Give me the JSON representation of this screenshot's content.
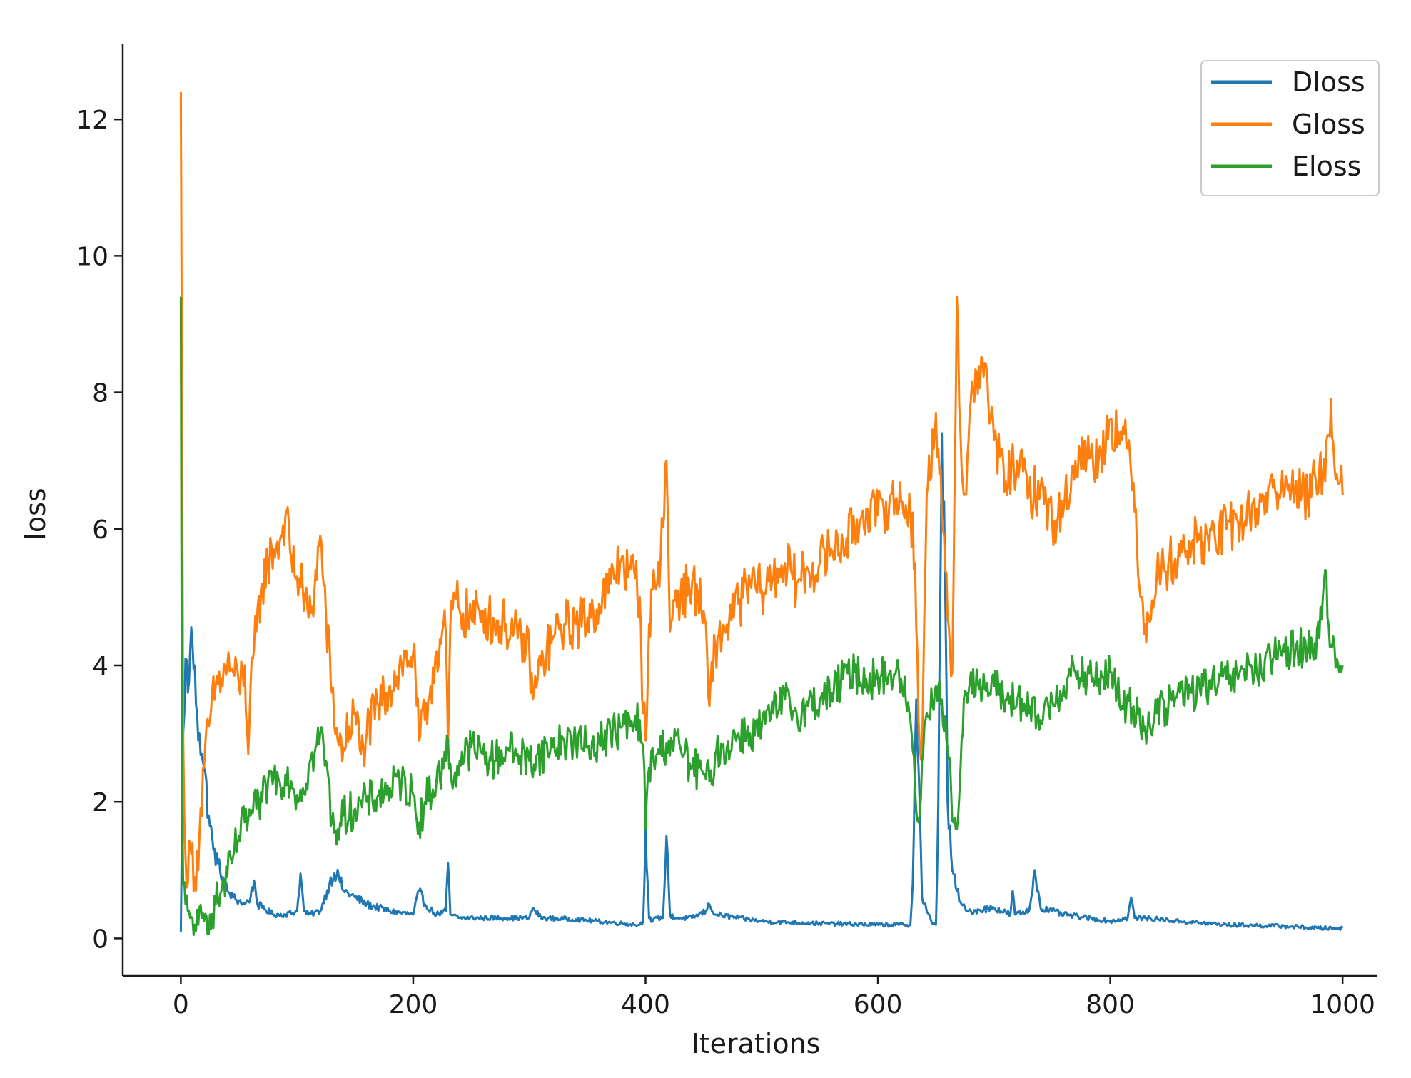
{
  "chart_data": {
    "type": "line",
    "title": "",
    "xlabel": "Iterations",
    "ylabel": "loss",
    "xlim": [
      -50,
      1030
    ],
    "ylim": [
      -0.55,
      13.1
    ],
    "xticks": [
      0,
      200,
      400,
      600,
      800,
      1000
    ],
    "xtick_labels": [
      "0",
      "200",
      "400",
      "600",
      "800",
      "1000"
    ],
    "yticks": [
      0,
      2,
      4,
      6,
      8,
      10,
      12
    ],
    "ytick_labels": [
      "0",
      "2",
      "4",
      "6",
      "8",
      "10",
      "12"
    ],
    "grid": false,
    "legend_position": "top-right",
    "noise_description": "series are noisy; values are approximate sampled points",
    "series": [
      {
        "name": "Dloss",
        "color": "#1f77b4",
        "x": [
          0,
          2,
          4,
          6,
          8,
          10,
          12,
          14,
          16,
          18,
          20,
          24,
          28,
          32,
          36,
          40,
          45,
          50,
          55,
          60,
          63,
          66,
          70,
          80,
          90,
          100,
          103,
          106,
          110,
          120,
          128,
          132,
          136,
          140,
          150,
          160,
          180,
          200,
          205,
          210,
          220,
          228,
          230,
          232,
          240,
          260,
          280,
          300,
          303,
          310,
          340,
          380,
          395,
          398,
          400,
          403,
          406,
          410,
          415,
          418,
          421,
          425,
          440,
          452,
          455,
          460,
          480,
          500,
          550,
          600,
          628,
          630,
          633,
          635,
          638,
          642,
          646,
          650,
          652,
          655,
          658,
          660,
          664,
          668,
          672,
          676,
          680,
          700,
          714,
          716,
          718,
          730,
          732,
          735,
          740,
          760,
          780,
          800,
          815,
          818,
          821,
          830,
          860,
          900,
          950,
          980,
          1000
        ],
        "values": [
          0.1,
          3.0,
          4.1,
          3.6,
          4.2,
          4.3,
          4.0,
          3.3,
          3.0,
          2.7,
          2.5,
          1.8,
          1.3,
          1.1,
          0.9,
          0.7,
          0.6,
          0.55,
          0.5,
          0.6,
          0.85,
          0.5,
          0.45,
          0.35,
          0.35,
          0.4,
          0.95,
          0.4,
          0.35,
          0.4,
          0.8,
          0.95,
          0.9,
          0.7,
          0.6,
          0.5,
          0.4,
          0.35,
          0.7,
          0.5,
          0.35,
          0.4,
          1.1,
          0.35,
          0.3,
          0.3,
          0.3,
          0.3,
          0.45,
          0.3,
          0.28,
          0.22,
          0.2,
          0.25,
          1.6,
          0.3,
          0.25,
          0.3,
          0.3,
          1.5,
          0.35,
          0.3,
          0.3,
          0.4,
          0.5,
          0.35,
          0.3,
          0.25,
          0.22,
          0.2,
          0.2,
          0.8,
          3.5,
          2.5,
          0.6,
          0.4,
          0.25,
          0.2,
          2.0,
          7.4,
          5.0,
          2.0,
          1.0,
          0.7,
          0.5,
          0.4,
          0.4,
          0.45,
          0.35,
          0.7,
          0.35,
          0.4,
          0.6,
          1.0,
          0.45,
          0.35,
          0.3,
          0.25,
          0.3,
          0.6,
          0.3,
          0.3,
          0.25,
          0.2,
          0.18,
          0.15,
          0.15
        ]
      },
      {
        "name": "Gloss",
        "color": "#ff7f0e",
        "x": [
          0,
          2,
          4,
          6,
          8,
          12,
          16,
          20,
          25,
          30,
          35,
          40,
          45,
          50,
          55,
          58,
          62,
          65,
          70,
          75,
          80,
          85,
          90,
          95,
          100,
          105,
          110,
          115,
          120,
          125,
          130,
          135,
          140,
          145,
          150,
          155,
          160,
          170,
          180,
          190,
          200,
          205,
          210,
          215,
          220,
          228,
          230,
          232,
          236,
          240,
          250,
          260,
          270,
          280,
          290,
          300,
          303,
          310,
          320,
          330,
          340,
          350,
          360,
          370,
          380,
          385,
          390,
          395,
          398,
          400,
          403,
          408,
          413,
          418,
          421,
          426,
          430,
          440,
          450,
          455,
          460,
          470,
          480,
          490,
          500,
          510,
          520,
          530,
          540,
          550,
          560,
          570,
          580,
          590,
          600,
          610,
          620,
          628,
          632,
          635,
          638,
          642,
          650,
          655,
          660,
          664,
          668,
          672,
          676,
          680,
          690,
          700,
          710,
          720,
          730,
          740,
          750,
          760,
          770,
          780,
          790,
          800,
          810,
          815,
          818,
          822,
          826,
          830,
          840,
          850,
          860,
          870,
          880,
          890,
          900,
          910,
          920,
          930,
          940,
          950,
          960,
          970,
          980,
          985,
          990,
          995,
          1000
        ],
        "values": [
          12.4,
          3.0,
          1.2,
          0.8,
          1.4,
          0.9,
          1.5,
          2.5,
          3.2,
          3.7,
          3.8,
          4.0,
          3.9,
          3.7,
          4.0,
          2.7,
          4.1,
          4.5,
          5.2,
          5.5,
          5.7,
          5.8,
          6.2,
          5.6,
          5.3,
          5.1,
          4.7,
          5.1,
          5.9,
          4.7,
          3.6,
          2.9,
          2.8,
          3.1,
          3.3,
          2.7,
          3.0,
          3.4,
          3.7,
          4.0,
          4.2,
          2.9,
          3.2,
          3.7,
          4.2,
          4.5,
          2.8,
          4.6,
          5.0,
          4.8,
          4.7,
          4.8,
          4.6,
          4.6,
          4.4,
          4.2,
          3.5,
          4.0,
          4.4,
          4.6,
          4.6,
          4.7,
          4.9,
          5.2,
          5.6,
          5.3,
          5.4,
          5.0,
          3.3,
          2.9,
          4.6,
          5.2,
          5.6,
          7.0,
          4.5,
          5.1,
          5.0,
          5.2,
          4.8,
          3.4,
          4.3,
          4.6,
          4.9,
          5.2,
          5.1,
          5.3,
          5.5,
          5.2,
          5.4,
          5.5,
          5.7,
          5.8,
          6.0,
          6.3,
          6.2,
          6.4,
          6.4,
          6.3,
          5.5,
          3.2,
          2.6,
          6.5,
          7.7,
          6.2,
          4.7,
          3.9,
          9.4,
          6.9,
          6.5,
          7.9,
          8.5,
          7.3,
          6.7,
          7.0,
          6.5,
          6.6,
          6.1,
          6.3,
          7.0,
          7.1,
          7.0,
          7.6,
          7.3,
          7.2,
          6.8,
          6.3,
          5.0,
          4.6,
          5.3,
          5.5,
          5.6,
          5.8,
          5.8,
          5.9,
          6.0,
          6.1,
          6.2,
          6.4,
          6.6,
          6.5,
          6.7,
          6.4,
          6.9,
          6.7,
          7.9,
          6.8,
          6.5
        ]
      },
      {
        "name": "Eloss",
        "color": "#2ca02c",
        "x": [
          0,
          1,
          2,
          4,
          6,
          8,
          10,
          12,
          15,
          20,
          25,
          30,
          35,
          40,
          45,
          50,
          55,
          60,
          65,
          70,
          75,
          80,
          85,
          90,
          95,
          100,
          105,
          110,
          115,
          120,
          125,
          130,
          135,
          140,
          150,
          160,
          170,
          180,
          190,
          200,
          205,
          210,
          220,
          228,
          230,
          233,
          240,
          250,
          260,
          270,
          280,
          290,
          300,
          310,
          320,
          330,
          340,
          350,
          360,
          370,
          380,
          390,
          395,
          398,
          400,
          403,
          410,
          420,
          430,
          440,
          450,
          455,
          460,
          470,
          480,
          490,
          500,
          510,
          520,
          530,
          540,
          550,
          560,
          570,
          580,
          590,
          600,
          610,
          620,
          628,
          632,
          635,
          638,
          642,
          650,
          655,
          660,
          665,
          668,
          672,
          676,
          680,
          690,
          700,
          710,
          720,
          730,
          740,
          750,
          760,
          770,
          780,
          790,
          800,
          810,
          820,
          830,
          840,
          850,
          860,
          870,
          880,
          890,
          900,
          910,
          920,
          930,
          940,
          950,
          960,
          970,
          980,
          985,
          990,
          995,
          1000
        ],
        "values": [
          9.4,
          2.5,
          0.8,
          0.5,
          0.4,
          0.3,
          0.3,
          0.2,
          0.2,
          0.25,
          0.35,
          0.5,
          0.7,
          0.9,
          1.2,
          1.5,
          1.7,
          1.8,
          1.9,
          2.0,
          2.3,
          2.4,
          2.3,
          2.4,
          2.3,
          2.1,
          2.2,
          2.5,
          2.7,
          3.0,
          2.6,
          1.7,
          1.6,
          1.8,
          1.9,
          2.0,
          2.1,
          2.2,
          2.3,
          2.1,
          1.7,
          2.0,
          2.3,
          2.6,
          2.9,
          2.3,
          2.6,
          2.8,
          2.7,
          2.6,
          2.8,
          2.7,
          2.6,
          2.7,
          2.8,
          2.9,
          2.9,
          2.8,
          2.9,
          3.0,
          3.1,
          3.1,
          3.2,
          2.8,
          1.6,
          2.5,
          2.7,
          2.9,
          2.8,
          2.5,
          2.4,
          2.3,
          2.7,
          2.8,
          3.0,
          3.0,
          3.1,
          3.3,
          3.5,
          3.3,
          3.4,
          3.5,
          3.6,
          3.8,
          3.9,
          3.8,
          3.8,
          3.9,
          3.8,
          3.2,
          2.2,
          1.7,
          2.6,
          3.3,
          3.7,
          3.5,
          2.8,
          1.7,
          1.6,
          2.9,
          3.6,
          3.9,
          3.6,
          3.7,
          3.5,
          3.5,
          3.3,
          3.2,
          3.5,
          3.7,
          3.9,
          3.8,
          3.8,
          3.9,
          3.4,
          3.4,
          3.1,
          3.3,
          3.4,
          3.6,
          3.6,
          3.7,
          3.7,
          3.8,
          3.8,
          4.0,
          3.9,
          4.1,
          4.2,
          4.3,
          4.2,
          4.4,
          5.4,
          4.3,
          4.1,
          4.0
        ]
      }
    ]
  }
}
